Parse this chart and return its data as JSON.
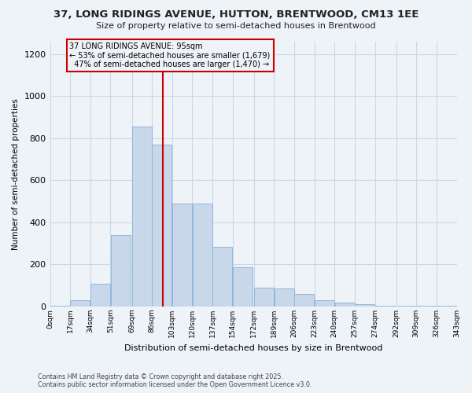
{
  "title_line1": "37, LONG RIDINGS AVENUE, HUTTON, BRENTWOOD, CM13 1EE",
  "title_line2": "Size of property relative to semi-detached houses in Brentwood",
  "xlabel": "Distribution of semi-detached houses by size in Brentwood",
  "ylabel": "Number of semi-detached properties",
  "bar_color": "#c8d8ea",
  "bar_edge_color": "#90b8d8",
  "grid_color": "#c8d8e8",
  "annotation_box_color": "#cc0000",
  "vline_color": "#cc0000",
  "bin_edges": [
    0,
    17,
    34,
    51,
    69,
    86,
    103,
    120,
    137,
    154,
    172,
    189,
    206,
    223,
    240,
    257,
    274,
    292,
    309,
    326,
    343
  ],
  "bin_labels": [
    "0sqm",
    "17sqm",
    "34sqm",
    "51sqm",
    "69sqm",
    "86sqm",
    "103sqm",
    "120sqm",
    "137sqm",
    "154sqm",
    "172sqm",
    "189sqm",
    "206sqm",
    "223sqm",
    "240sqm",
    "257sqm",
    "274sqm",
    "292sqm",
    "309sqm",
    "326sqm",
    "343sqm"
  ],
  "counts": [
    5,
    30,
    110,
    340,
    855,
    770,
    490,
    490,
    285,
    185,
    90,
    85,
    60,
    30,
    20,
    10,
    5,
    2,
    2,
    2
  ],
  "property_size": 95,
  "property_label": "37 LONG RIDINGS AVENUE: 95sqm",
  "pct_smaller": 53,
  "n_smaller": 1679,
  "pct_larger": 47,
  "n_larger": 1470,
  "ylim_max": 1260,
  "yticks": [
    0,
    200,
    400,
    600,
    800,
    1000,
    1200
  ],
  "footer_line1": "Contains HM Land Registry data © Crown copyright and database right 2025.",
  "footer_line2": "Contains public sector information licensed under the Open Government Licence v3.0.",
  "bg_color": "#eef3f8"
}
